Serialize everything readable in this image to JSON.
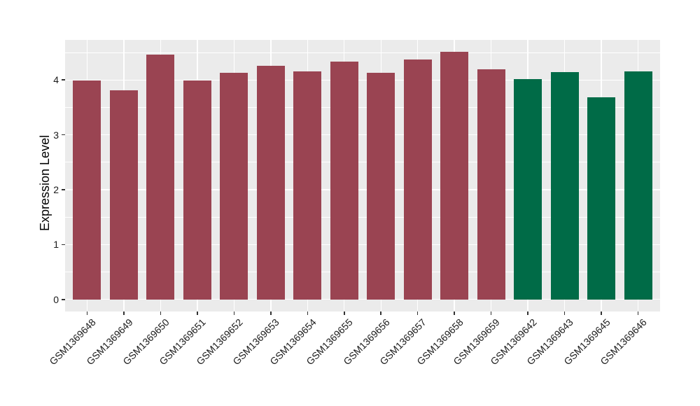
{
  "chart_data": {
    "type": "bar",
    "title": "",
    "xlabel": "",
    "ylabel": "Expression Level",
    "categories": [
      "GSM1369648",
      "GSM1369649",
      "GSM1369650",
      "GSM1369651",
      "GSM1369652",
      "GSM1369653",
      "GSM1369654",
      "GSM1369655",
      "GSM1369656",
      "GSM1369657",
      "GSM1369658",
      "GSM1369659",
      "GSM1369642",
      "GSM1369643",
      "GSM1369645",
      "GSM1369646"
    ],
    "values": [
      3.99,
      3.81,
      4.46,
      3.99,
      4.13,
      4.26,
      4.15,
      4.33,
      4.13,
      4.37,
      4.51,
      4.2,
      4.02,
      4.14,
      3.68,
      4.15
    ],
    "bar_colors": [
      "#9A4452",
      "#9A4452",
      "#9A4452",
      "#9A4452",
      "#9A4452",
      "#9A4452",
      "#9A4452",
      "#9A4452",
      "#9A4452",
      "#9A4452",
      "#9A4452",
      "#9A4452",
      "#006B47",
      "#006B47",
      "#006B47",
      "#006B47"
    ],
    "group_palette": {
      "maroon": "#9A4452",
      "green": "#006B47"
    },
    "yticks": [
      0,
      1,
      2,
      3,
      4
    ],
    "minor_gridlines": [
      0.5,
      1.5,
      2.5,
      3.5,
      4.5
    ],
    "ylim": [
      -0.22,
      4.73
    ],
    "grid": "on",
    "legend": "none",
    "panel_bg": "#EBEBEB",
    "grid_color": "#FFFFFF",
    "axis_text_color": "#1a1a1a",
    "tick_color": "#333333"
  }
}
